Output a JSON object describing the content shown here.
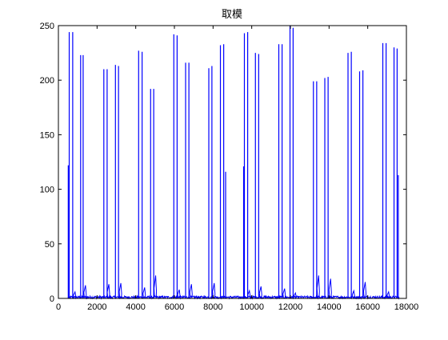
{
  "chart_data": {
    "type": "line",
    "title": "取模",
    "xlabel": "",
    "ylabel": "",
    "xlim": [
      0,
      18000
    ],
    "ylim": [
      0,
      250
    ],
    "xticks": [
      0,
      2000,
      4000,
      6000,
      8000,
      10000,
      12000,
      14000,
      16000,
      18000
    ],
    "yticks": [
      0,
      50,
      100,
      150,
      200,
      250
    ],
    "grid": false,
    "line_color": "#0000ff",
    "spikes": [
      {
        "x": 510,
        "y": 122
      },
      {
        "x": 560,
        "y": 244
      },
      {
        "x": 740,
        "y": 244
      },
      {
        "x": 1150,
        "y": 223
      },
      {
        "x": 1280,
        "y": 223
      },
      {
        "x": 2350,
        "y": 210
      },
      {
        "x": 2520,
        "y": 210
      },
      {
        "x": 2950,
        "y": 214
      },
      {
        "x": 3110,
        "y": 213
      },
      {
        "x": 4150,
        "y": 227
      },
      {
        "x": 4330,
        "y": 226
      },
      {
        "x": 4770,
        "y": 192
      },
      {
        "x": 4930,
        "y": 192
      },
      {
        "x": 5970,
        "y": 242
      },
      {
        "x": 6140,
        "y": 241
      },
      {
        "x": 6580,
        "y": 216
      },
      {
        "x": 6750,
        "y": 216
      },
      {
        "x": 7780,
        "y": 211
      },
      {
        "x": 7940,
        "y": 213
      },
      {
        "x": 8380,
        "y": 232
      },
      {
        "x": 8550,
        "y": 233
      },
      {
        "x": 8650,
        "y": 116
      },
      {
        "x": 9580,
        "y": 121
      },
      {
        "x": 9620,
        "y": 243
      },
      {
        "x": 9790,
        "y": 244
      },
      {
        "x": 10190,
        "y": 225
      },
      {
        "x": 10360,
        "y": 224
      },
      {
        "x": 11400,
        "y": 233
      },
      {
        "x": 11570,
        "y": 233
      },
      {
        "x": 11980,
        "y": 250
      },
      {
        "x": 12140,
        "y": 248
      },
      {
        "x": 13190,
        "y": 199
      },
      {
        "x": 13360,
        "y": 199
      },
      {
        "x": 13780,
        "y": 202
      },
      {
        "x": 13950,
        "y": 203
      },
      {
        "x": 14980,
        "y": 225
      },
      {
        "x": 15150,
        "y": 226
      },
      {
        "x": 15580,
        "y": 208
      },
      {
        "x": 15750,
        "y": 209
      },
      {
        "x": 16780,
        "y": 234
      },
      {
        "x": 16950,
        "y": 234
      },
      {
        "x": 17360,
        "y": 230
      },
      {
        "x": 17520,
        "y": 229
      },
      {
        "x": 17580,
        "y": 113
      }
    ],
    "small_peaks": [
      {
        "x": 860,
        "y": 6
      },
      {
        "x": 1400,
        "y": 12
      },
      {
        "x": 2610,
        "y": 13
      },
      {
        "x": 3230,
        "y": 14
      },
      {
        "x": 4460,
        "y": 10
      },
      {
        "x": 5030,
        "y": 21
      },
      {
        "x": 6250,
        "y": 8
      },
      {
        "x": 6880,
        "y": 13
      },
      {
        "x": 8060,
        "y": 14
      },
      {
        "x": 9880,
        "y": 7
      },
      {
        "x": 10480,
        "y": 11
      },
      {
        "x": 11700,
        "y": 9
      },
      {
        "x": 12260,
        "y": 5
      },
      {
        "x": 13460,
        "y": 21
      },
      {
        "x": 14080,
        "y": 18
      },
      {
        "x": 15280,
        "y": 7
      },
      {
        "x": 15870,
        "y": 15
      },
      {
        "x": 17080,
        "y": 6
      }
    ]
  }
}
